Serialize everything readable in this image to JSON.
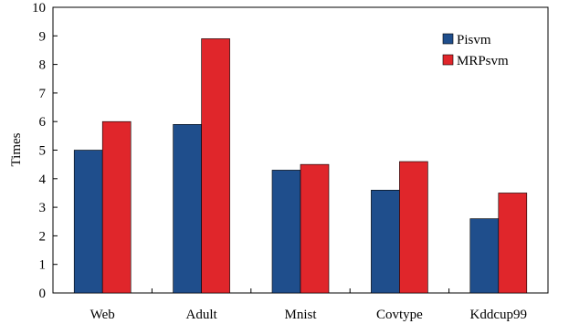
{
  "chart_data": {
    "type": "bar",
    "title": "",
    "xlabel": "",
    "ylabel": "Times",
    "ylim": [
      0,
      10
    ],
    "yticks": [
      0,
      1,
      2,
      3,
      4,
      5,
      6,
      7,
      8,
      9,
      10
    ],
    "grid": false,
    "legend_position": "top-right",
    "categories": [
      "Web",
      "Adult",
      "Mnist",
      "Covtype",
      "Kddcup99"
    ],
    "series": [
      {
        "name": "Pisvm",
        "color": "#1f4e8c",
        "values": [
          5.0,
          5.9,
          4.3,
          3.6,
          2.6
        ]
      },
      {
        "name": "MRPsvm",
        "color": "#e0262b",
        "values": [
          6.0,
          8.9,
          4.5,
          4.6,
          3.5
        ]
      }
    ]
  }
}
